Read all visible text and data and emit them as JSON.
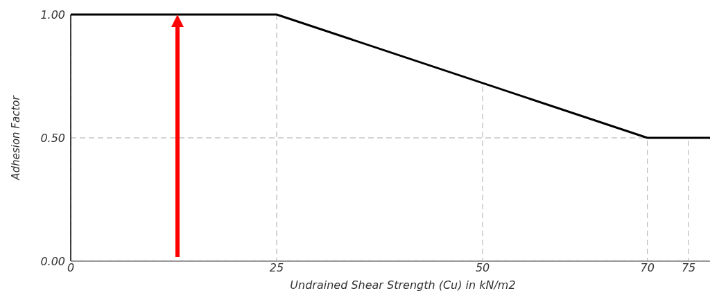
{
  "chart_data": {
    "type": "line",
    "xlabel": "Undrained Shear Strength (Cu) in kN/m2",
    "ylabel": "Adhesion Factor",
    "x": [
      0,
      25,
      70,
      77.6
    ],
    "series": [
      {
        "color": "#000000",
        "values": [
          1,
          1,
          0.5,
          0.5
        ]
      }
    ],
    "xlim": [
      0,
      77.6
    ],
    "xticks": [
      0,
      25,
      50,
      70,
      75
    ],
    "ylim": [
      0,
      1
    ],
    "yticks": [
      {
        "value": 0,
        "label": "0.00"
      },
      {
        "value": 0.5,
        "label": "0.50"
      },
      {
        "value": 1,
        "label": "1.00"
      }
    ],
    "grid": true,
    "marker": "none",
    "line_style": "solid"
  }
}
